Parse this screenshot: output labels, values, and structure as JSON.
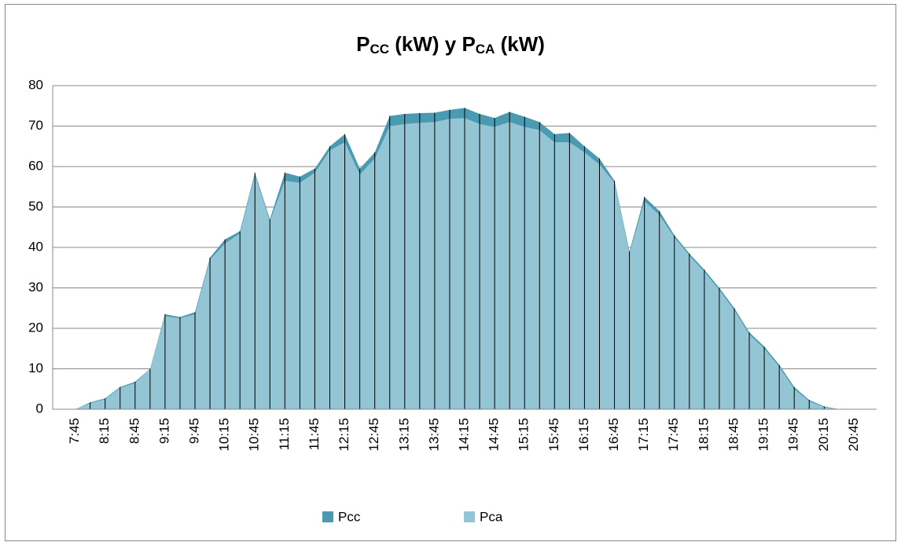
{
  "chart_data": {
    "type": "area",
    "title_parts": [
      "P",
      "CC",
      " (kW) y P",
      "CA",
      " (kW)"
    ],
    "categories": [
      null,
      "7:45",
      null,
      "8:15",
      null,
      "8:45",
      null,
      "9:15",
      null,
      "9:45",
      null,
      "10:15",
      null,
      "10:45",
      null,
      "11:15",
      null,
      "11:45",
      null,
      "12:15",
      null,
      "12:45",
      null,
      "13:15",
      null,
      "13:45",
      null,
      "14:15",
      null,
      "14:45",
      null,
      "15:15",
      null,
      "15:45",
      null,
      "16:15",
      null,
      "16:45",
      null,
      "17:15",
      null,
      "17:45",
      null,
      "18:15",
      null,
      "18:45",
      null,
      "19:15",
      null,
      "19:45",
      null,
      "20:15",
      null,
      "20:45",
      null
    ],
    "series": [
      {
        "name": "Pcc",
        "color": "#4a9bb1",
        "values": [
          null,
          0,
          1.7,
          2.7,
          5.5,
          6.8,
          10,
          23.5,
          22.8,
          24,
          37.5,
          42,
          44,
          58.5,
          47,
          58.5,
          57.5,
          59.5,
          65,
          68,
          59.5,
          63.5,
          72.5,
          73,
          73.2,
          73.3,
          74,
          74.5,
          73,
          72,
          73.5,
          72.3,
          71,
          68,
          68.3,
          65,
          62,
          56.5,
          39,
          52.5,
          49,
          43,
          38.5,
          34.5,
          30,
          25,
          19,
          15.5,
          11,
          5.5,
          2.3,
          0.7,
          0,
          0,
          null
        ]
      },
      {
        "name": "Pca",
        "color": "#93c5d5",
        "values": [
          null,
          0,
          1.5,
          2.5,
          5.3,
          6.5,
          10,
          23,
          22.5,
          23.5,
          37,
          41,
          43.5,
          58,
          46.5,
          56.5,
          56,
          58.5,
          64,
          66,
          58,
          62,
          70,
          70.5,
          70.8,
          71,
          71.8,
          72,
          70.5,
          69.8,
          71,
          69.8,
          69,
          66,
          66,
          63.5,
          60.5,
          56,
          38.5,
          51.5,
          48,
          42.5,
          38,
          34,
          29.5,
          24.5,
          18.5,
          15,
          10.5,
          5,
          2,
          0.5,
          0,
          0,
          null
        ]
      }
    ],
    "ylim": [
      0,
      80
    ],
    "yticks": [
      0,
      10,
      20,
      30,
      40,
      50,
      60,
      70,
      80
    ],
    "grid": true,
    "drop_lines": true,
    "legend": "bottom"
  }
}
